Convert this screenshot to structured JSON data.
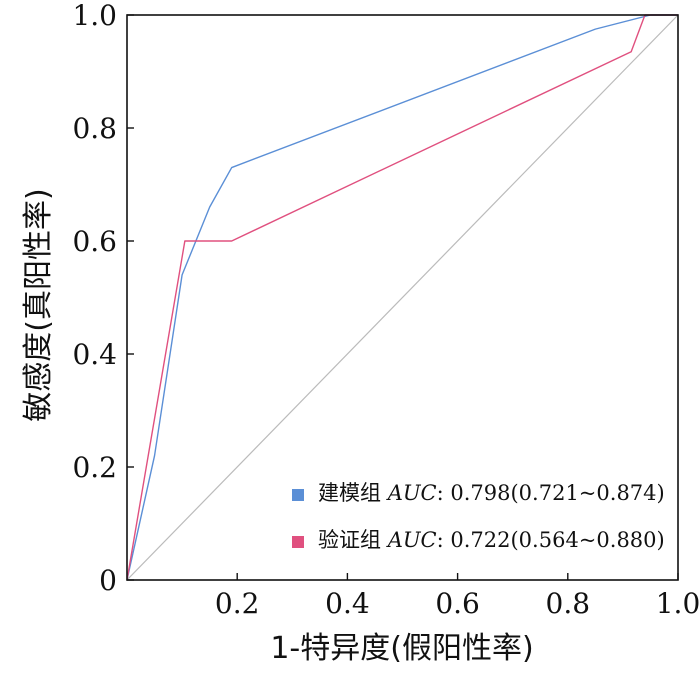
{
  "chart_data": {
    "type": "line",
    "title": "",
    "xlabel": "1-特异度(假阳性率)",
    "ylabel": "敏感度(真阳性率)",
    "xlim": [
      0,
      1
    ],
    "ylim": [
      0,
      1
    ],
    "x_ticks": [
      "0.2",
      "0.4",
      "0.6",
      "0.8",
      "1.0"
    ],
    "y_ticks": [
      "0",
      "0.2",
      "0.4",
      "0.6",
      "0.8",
      "1.0"
    ],
    "grid": false,
    "legend_position": "bottom-right",
    "series": [
      {
        "name": "建模组",
        "auc_label": "AUC",
        "auc_text": ": 0.798(0.721~0.874)",
        "color": "#5b8fd6",
        "points": [
          [
            0,
            0
          ],
          [
            0.05,
            0.22
          ],
          [
            0.1,
            0.54
          ],
          [
            0.15,
            0.66
          ],
          [
            0.19,
            0.73
          ],
          [
            0.85,
            0.975
          ],
          [
            0.95,
            1.0
          ],
          [
            1.0,
            1.0
          ]
        ]
      },
      {
        "name": "验证组",
        "auc_label": "AUC",
        "auc_text": ": 0.722(0.564~0.880)",
        "color": "#e0507f",
        "points": [
          [
            0,
            0
          ],
          [
            0.105,
            0.6
          ],
          [
            0.19,
            0.6
          ],
          [
            0.915,
            0.935
          ],
          [
            0.94,
            1.0
          ],
          [
            1.0,
            1.0
          ]
        ]
      }
    ],
    "reference_line": {
      "points": [
        [
          0,
          0
        ],
        [
          1,
          1
        ]
      ],
      "color": "#bbbbbb"
    }
  }
}
